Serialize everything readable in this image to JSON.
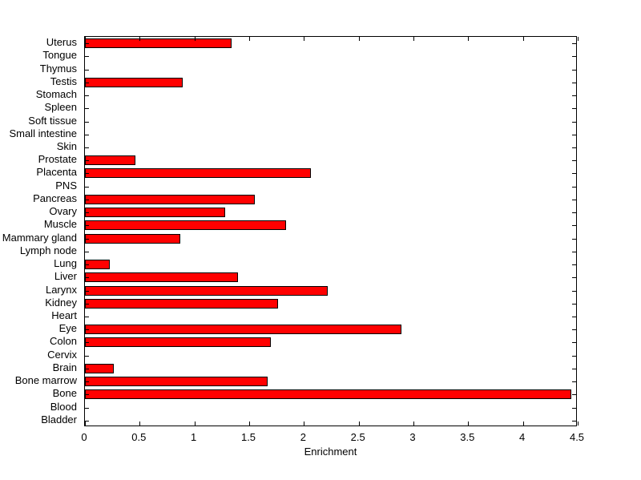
{
  "chart_data": {
    "type": "bar",
    "orientation": "horizontal",
    "title": "",
    "xlabel": "Enrichment",
    "ylabel": "",
    "xlim": [
      0,
      4.5
    ],
    "xticks": [
      0,
      0.5,
      1,
      1.5,
      2,
      2.5,
      3,
      3.5,
      4,
      4.5
    ],
    "grid": false,
    "legend": null,
    "bar_color": "#ff0000",
    "bar_edge_color": "#000000",
    "categories_top_to_bottom": [
      "Uterus",
      "Tongue",
      "Thymus",
      "Testis",
      "Stomach",
      "Spleen",
      "Soft tissue",
      "Small intestine",
      "Skin",
      "Prostate",
      "Placenta",
      "PNS",
      "Pancreas",
      "Ovary",
      "Muscle",
      "Mammary gland",
      "Lymph node",
      "Lung",
      "Liver",
      "Larynx",
      "Kidney",
      "Heart",
      "Eye",
      "Colon",
      "Cervix",
      "Brain",
      "Bone marrow",
      "Bone",
      "Blood",
      "Bladder"
    ],
    "values": [
      1.34,
      0,
      0,
      0.89,
      0,
      0,
      0,
      0,
      0,
      0.46,
      2.06,
      0,
      1.55,
      1.28,
      1.84,
      0.87,
      0,
      0.23,
      1.4,
      2.22,
      1.76,
      0,
      2.89,
      1.7,
      0,
      0.26,
      1.67,
      4.44,
      0,
      0
    ]
  }
}
